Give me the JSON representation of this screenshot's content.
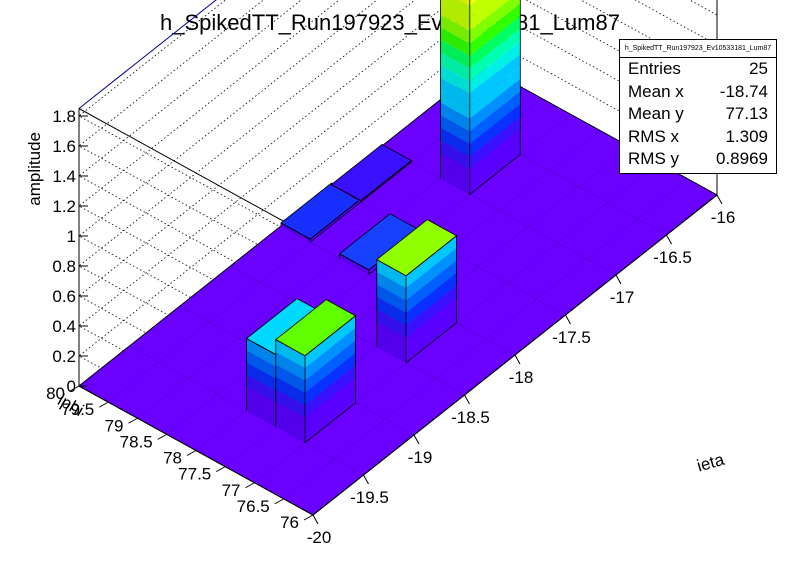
{
  "chart_data": {
    "type": "lego3d",
    "title": "h_SpikedTT_Run197923_Ev10533181_Lum87",
    "xlabel": "ieta",
    "ylabel": "iphi",
    "zlabel": "amplitude",
    "xlim": [
      -20,
      -16
    ],
    "ylim": [
      76,
      80
    ],
    "zlim": [
      0,
      1.85
    ],
    "x_ticks": [
      "-20",
      "-19.5",
      "-19",
      "-18.5",
      "-18",
      "-17.5",
      "-17",
      "-16.5",
      "-16"
    ],
    "y_ticks": [
      "76",
      "76.5",
      "77",
      "77.5",
      "78",
      "78.5",
      "79",
      "79.5",
      "80"
    ],
    "z_ticks": [
      "0",
      "0.2",
      "0.4",
      "0.6",
      "0.8",
      "1",
      "1.2",
      "1.4",
      "1.6",
      "1.8"
    ],
    "grid": true,
    "palette": [
      "#5a00ff",
      "#3a10ff",
      "#0a30ff",
      "#0060ff",
      "#0090ff",
      "#00c8ff",
      "#00f0e8",
      "#00ffb0",
      "#00ff60",
      "#30ff00",
      "#80ff00",
      "#c0ff00",
      "#f0ff00",
      "#ffd000",
      "#ffa000",
      "#ff6000",
      "#ff2000",
      "#ff0000"
    ],
    "floor_color": "#6a00ff",
    "bars": [
      {
        "ieta": -19.5,
        "iphi": 77.5,
        "value": 0.48,
        "color": "#00d8ff"
      },
      {
        "ieta": -19.5,
        "iphi": 77,
        "value": 0.58,
        "color": "#60ff00"
      },
      {
        "ieta": -18.5,
        "iphi": 77,
        "value": 0.58,
        "color": "#90ff00"
      },
      {
        "ieta": -18,
        "iphi": 79.5,
        "value": 0.02,
        "color": "#1830ff"
      },
      {
        "ieta": -18,
        "iphi": 78.5,
        "value": 0.03,
        "color": "#1840ff"
      },
      {
        "ieta": -17.5,
        "iphi": 79.5,
        "value": 0.01,
        "color": "#3a10ff"
      },
      {
        "ieta": -17,
        "iphi": 78.5,
        "value": 1.51,
        "color": "#ff0000"
      }
    ]
  },
  "stats": {
    "title": "h_SpikedTT_Run197923_Ev10533181_Lum87",
    "rows": [
      {
        "label": "Entries",
        "value": "25"
      },
      {
        "label": "Mean x",
        "value": "-18.74"
      },
      {
        "label": "Mean y",
        "value": "77.13"
      },
      {
        "label": "RMS x",
        "value": "1.309"
      },
      {
        "label": "RMS y",
        "value": "0.8969"
      }
    ]
  }
}
